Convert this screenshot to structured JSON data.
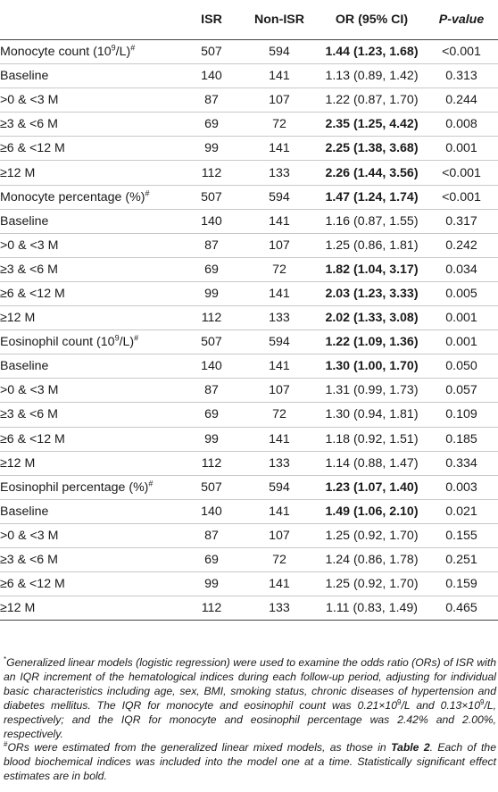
{
  "table": {
    "headers": [
      "",
      "ISR",
      "Non-ISR",
      "OR (95% CI)",
      "P-value"
    ],
    "rows": [
      {
        "label": "Monocyte count (10",
        "label_sup": "9",
        "label_tail": "/L)",
        "label_mark": "#",
        "isr": "507",
        "non_isr": "594",
        "or": "1.44 (1.23, 1.68)",
        "or_bold": true,
        "p": "<0.001"
      },
      {
        "label": "Baseline",
        "isr": "140",
        "non_isr": "141",
        "or": "1.13 (0.89, 1.42)",
        "or_bold": false,
        "p": "0.313"
      },
      {
        "label": ">0 & <3 M",
        "isr": "87",
        "non_isr": "107",
        "or": "1.22 (0.87, 1.70)",
        "or_bold": false,
        "p": "0.244"
      },
      {
        "label": "≥3 & <6 M",
        "isr": "69",
        "non_isr": "72",
        "or": "2.35 (1.25, 4.42)",
        "or_bold": true,
        "p": "0.008"
      },
      {
        "label": "≥6 & <12 M",
        "isr": "99",
        "non_isr": "141",
        "or": "2.25 (1.38, 3.68)",
        "or_bold": true,
        "p": "0.001"
      },
      {
        "label": "≥12 M",
        "isr": "112",
        "non_isr": "133",
        "or": "2.26 (1.44, 3.56)",
        "or_bold": true,
        "p": "<0.001"
      },
      {
        "label": "Monocyte percentage (%)",
        "label_mark": "#",
        "isr": "507",
        "non_isr": "594",
        "or": "1.47 (1.24, 1.74)",
        "or_bold": true,
        "p": "<0.001"
      },
      {
        "label": "Baseline",
        "isr": "140",
        "non_isr": "141",
        "or": "1.16 (0.87, 1.55)",
        "or_bold": false,
        "p": "0.317"
      },
      {
        "label": ">0 & <3 M",
        "isr": "87",
        "non_isr": "107",
        "or": "1.25 (0.86, 1.81)",
        "or_bold": false,
        "p": "0.242"
      },
      {
        "label": "≥3 & <6 M",
        "isr": "69",
        "non_isr": "72",
        "or": "1.82 (1.04, 3.17)",
        "or_bold": true,
        "p": "0.034"
      },
      {
        "label": "≥6 & <12 M",
        "isr": "99",
        "non_isr": "141",
        "or": "2.03 (1.23, 3.33)",
        "or_bold": true,
        "p": "0.005"
      },
      {
        "label": "≥12 M",
        "isr": "112",
        "non_isr": "133",
        "or": "2.02 (1.33, 3.08)",
        "or_bold": true,
        "p": "0.001"
      },
      {
        "label": "Eosinophil count (10",
        "label_sup": "9",
        "label_tail": "/L)",
        "label_mark": "#",
        "isr": "507",
        "non_isr": "594",
        "or": "1.22 (1.09, 1.36)",
        "or_bold": true,
        "p": "0.001"
      },
      {
        "label": "Baseline",
        "isr": "140",
        "non_isr": "141",
        "or": "1.30 (1.00, 1.70)",
        "or_bold": true,
        "p": "0.050"
      },
      {
        "label": ">0 & <3 M",
        "isr": "87",
        "non_isr": "107",
        "or": "1.31 (0.99, 1.73)",
        "or_bold": false,
        "p": "0.057"
      },
      {
        "label": "≥3 & <6 M",
        "isr": "69",
        "non_isr": "72",
        "or": "1.30 (0.94, 1.81)",
        "or_bold": false,
        "p": "0.109"
      },
      {
        "label": "≥6 & <12 M",
        "isr": "99",
        "non_isr": "141",
        "or": "1.18 (0.92, 1.51)",
        "or_bold": false,
        "p": "0.185"
      },
      {
        "label": "≥12 M",
        "isr": "112",
        "non_isr": "133",
        "or": "1.14 (0.88, 1.47)",
        "or_bold": false,
        "p": "0.334"
      },
      {
        "label": "Eosinophil percentage (%)",
        "label_mark": "#",
        "isr": "507",
        "non_isr": "594",
        "or": "1.23 (1.07, 1.40)",
        "or_bold": true,
        "p": "0.003"
      },
      {
        "label": "Baseline",
        "isr": "140",
        "non_isr": "141",
        "or": "1.49 (1.06, 2.10)",
        "or_bold": true,
        "p": "0.021"
      },
      {
        "label": ">0 & <3 M",
        "isr": "87",
        "non_isr": "107",
        "or": "1.25 (0.92, 1.70)",
        "or_bold": false,
        "p": "0.155"
      },
      {
        "label": "≥3 & <6 M",
        "isr": "69",
        "non_isr": "72",
        "or": "1.24 (0.86, 1.78)",
        "or_bold": false,
        "p": "0.251"
      },
      {
        "label": "≥6 & <12 M",
        "isr": "99",
        "non_isr": "141",
        "or": "1.25 (0.92, 1.70)",
        "or_bold": false,
        "p": "0.159"
      },
      {
        "label": "≥12 M",
        "isr": "112",
        "non_isr": "133",
        "or": "1.11 (0.83, 1.49)",
        "or_bold": false,
        "p": "0.465"
      }
    ]
  },
  "notes": {
    "note1_mark": "*",
    "note1_a": "Generalized linear models (logistic regression) were used to examine the odds ratio (ORs) of ISR with an IQR increment of the hematological indices during each follow-up period, adjusting for individual basic characteristics including age, sex, BMI, smoking status, chronic diseases of hypertension and diabetes mellitus. The IQR for monocyte and eosinophil count was 0.21×10",
    "note1_sup1": "9",
    "note1_b": "/L and 0.13×10",
    "note1_sup2": "9",
    "note1_c": "/L, respectively; and the IQR for monocyte and eosinophil percentage was 2.42% and 2.00%, respectively.",
    "note2_mark": "#",
    "note2_a": "ORs were estimated from the generalized linear mixed models, as those in ",
    "note2_ref": "Table 2",
    "note2_b": ". Each of the blood biochemical indices was included into the model one at a time. Statistically significant effect estimates are in bold."
  }
}
